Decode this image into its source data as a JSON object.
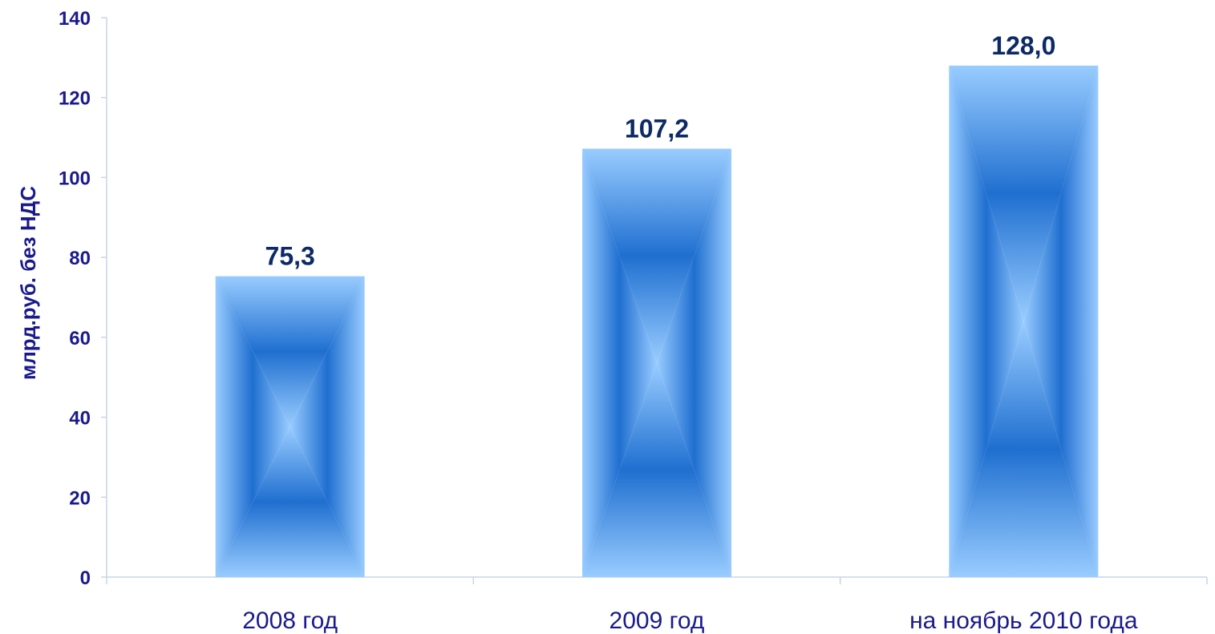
{
  "chart_data": {
    "type": "bar",
    "categories": [
      "2008 год",
      "2009 год",
      "на ноябрь 2010 года"
    ],
    "values": [
      75.3,
      107.2,
      128.0
    ],
    "data_labels": [
      "75,3",
      "107,2",
      "128,0"
    ],
    "title": "",
    "xlabel": "",
    "ylabel": "млрд.руб. без НДС",
    "ylim": [
      0,
      140
    ],
    "yticks": [
      "0",
      "20",
      "40",
      "60",
      "80",
      "100",
      "120",
      "140"
    ],
    "grid": false,
    "legend": "none",
    "colors": {
      "bar_edge": "#99ccff",
      "bar_center": "#1f6fd0",
      "text": "#1a1a8c",
      "data_label": "#0d2a66",
      "axis": "#c8d4e8"
    }
  }
}
